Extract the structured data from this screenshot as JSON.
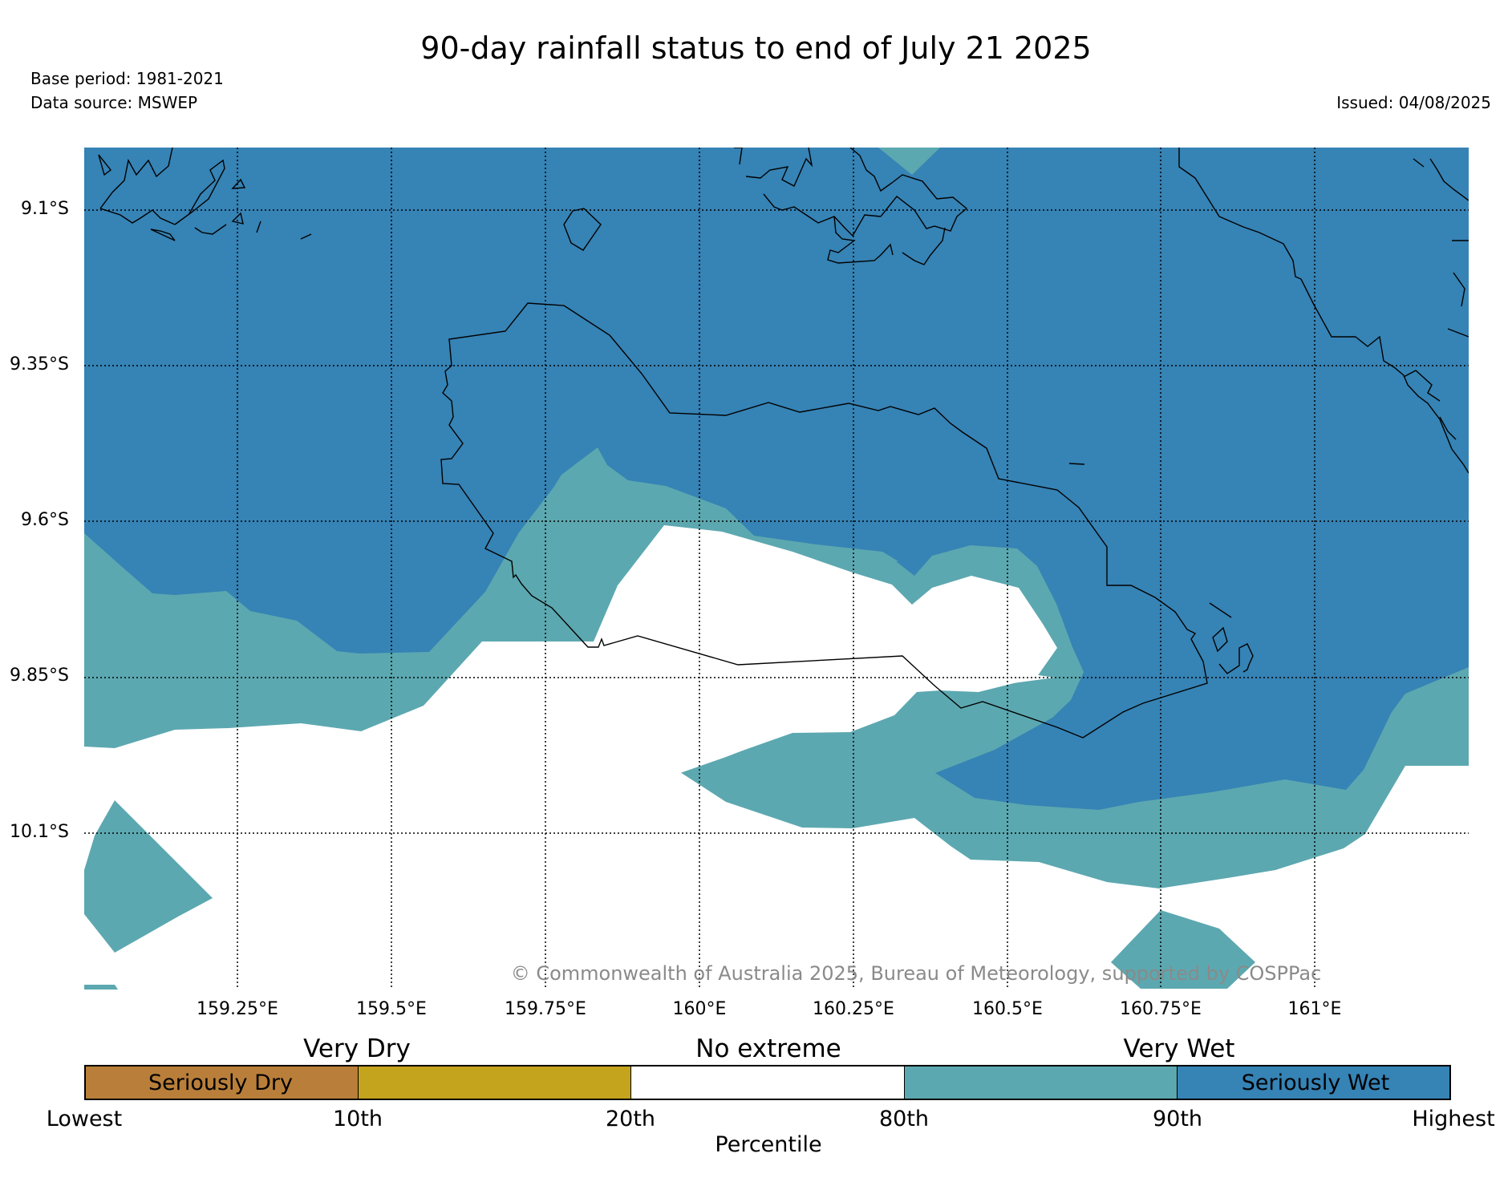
{
  "title": "90-day rainfall status to end of July 21 2025",
  "meta": {
    "base_period": "Base period: 1981-2021",
    "data_source": "Data source: MSWEP",
    "issued": "Issued: 04/08/2025"
  },
  "map": {
    "lat_labels": [
      "9.1°S",
      "9.35°S",
      "9.6°S",
      "9.85°S",
      "10.1°S"
    ],
    "lon_labels": [
      "159.25°E",
      "159.5°E",
      "159.75°E",
      "160°E",
      "160.25°E",
      "160.5°E",
      "160.75°E",
      "161°E"
    ],
    "copyright": "© Commonwealth of Australia 2025, Bureau of Meteorology, supported by COSPPac",
    "grid": "dotted"
  },
  "legend": {
    "categories": [
      "Very Dry",
      "No extreme",
      "Very Wet"
    ],
    "classes": [
      {
        "label": "Seriously Dry",
        "color": "#b97f3a"
      },
      {
        "label": "",
        "color": "#c4a31d"
      },
      {
        "label": "",
        "color": "#ffffff"
      },
      {
        "label": "",
        "color": "#5ca8b0"
      },
      {
        "label": "Seriously Wet",
        "color": "#3683b5"
      }
    ],
    "ticks": [
      "Lowest",
      "10th",
      "20th",
      "80th",
      "90th",
      "Highest"
    ],
    "axis_label": "Percentile"
  },
  "colors": {
    "seriously_wet": "#3683b5",
    "very_wet": "#5ca8b0",
    "no_extreme": "#ffffff",
    "coastline": "#000000"
  }
}
